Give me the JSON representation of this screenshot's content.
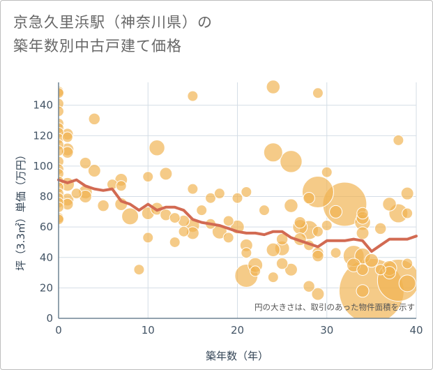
{
  "title_line1": "京急久里浜駅（神奈川県）の",
  "title_line2": "築年数別中古戸建て価格",
  "chart_data": {
    "type": "scatter",
    "xlabel": "築年数（年）",
    "ylabel": "坪（3.3㎡）単価（万円）",
    "xlim": [
      0,
      40
    ],
    "ylim": [
      0,
      155
    ],
    "xticks": [
      0,
      10,
      20,
      30,
      40
    ],
    "yticks": [
      0,
      20,
      40,
      60,
      80,
      100,
      120,
      140
    ],
    "grid": true,
    "annotation": "円の大きさは、取引のあった物件面積を示す",
    "colors": {
      "bubble": "#f0b24f",
      "line": "#d26a52",
      "grid": "#d4dde6",
      "axis": "#6f8394"
    },
    "points": [
      {
        "x": 0,
        "y": 149,
        "s": 1
      },
      {
        "x": 0,
        "y": 148,
        "s": 1
      },
      {
        "x": 0,
        "y": 141,
        "s": 1
      },
      {
        "x": 0,
        "y": 136,
        "s": 1
      },
      {
        "x": 0,
        "y": 128,
        "s": 1
      },
      {
        "x": 0,
        "y": 125,
        "s": 1
      },
      {
        "x": 0,
        "y": 122,
        "s": 1
      },
      {
        "x": 0,
        "y": 118,
        "s": 1
      },
      {
        "x": 0,
        "y": 114,
        "s": 1
      },
      {
        "x": 0,
        "y": 110,
        "s": 1
      },
      {
        "x": 0,
        "y": 103,
        "s": 1
      },
      {
        "x": 0,
        "y": 98,
        "s": 1
      },
      {
        "x": 0,
        "y": 95,
        "s": 1
      },
      {
        "x": 0,
        "y": 90,
        "s": 1
      },
      {
        "x": 0,
        "y": 86,
        "s": 1
      },
      {
        "x": 0,
        "y": 82,
        "s": 1
      },
      {
        "x": 0,
        "y": 79,
        "s": 1
      },
      {
        "x": 0,
        "y": 76,
        "s": 1
      },
      {
        "x": 0,
        "y": 73,
        "s": 1
      },
      {
        "x": 0,
        "y": 66,
        "s": 1
      },
      {
        "x": 0,
        "y": 65,
        "s": 1
      },
      {
        "x": 1,
        "y": 121,
        "s": 1.1
      },
      {
        "x": 1,
        "y": 119,
        "s": 1
      },
      {
        "x": 1,
        "y": 111,
        "s": 1.2
      },
      {
        "x": 1,
        "y": 109,
        "s": 1.1
      },
      {
        "x": 1,
        "y": 88,
        "s": 1.3
      },
      {
        "x": 1,
        "y": 78,
        "s": 1.2
      },
      {
        "x": 1,
        "y": 75,
        "s": 1.1
      },
      {
        "x": 2,
        "y": 82,
        "s": 1
      },
      {
        "x": 3,
        "y": 102,
        "s": 1.1
      },
      {
        "x": 3,
        "y": 83,
        "s": 1.3
      },
      {
        "x": 3,
        "y": 80,
        "s": 1.2
      },
      {
        "x": 4,
        "y": 131,
        "s": 1.1
      },
      {
        "x": 4,
        "y": 97,
        "s": 1.2
      },
      {
        "x": 5,
        "y": 74,
        "s": 1.1
      },
      {
        "x": 6,
        "y": 88,
        "s": 1
      },
      {
        "x": 7,
        "y": 91,
        "s": 1.2
      },
      {
        "x": 7,
        "y": 87,
        "s": 1
      },
      {
        "x": 7,
        "y": 75,
        "s": 1.2
      },
      {
        "x": 8,
        "y": 67,
        "s": 1.6
      },
      {
        "x": 9,
        "y": 32,
        "s": 1
      },
      {
        "x": 10,
        "y": 93,
        "s": 1
      },
      {
        "x": 10,
        "y": 69,
        "s": 1.2
      },
      {
        "x": 10,
        "y": 53,
        "s": 1
      },
      {
        "x": 11,
        "y": 112,
        "s": 1.5
      },
      {
        "x": 11,
        "y": 72,
        "s": 1.2
      },
      {
        "x": 12,
        "y": 95,
        "s": 1.2
      },
      {
        "x": 12,
        "y": 68,
        "s": 1.1
      },
      {
        "x": 13,
        "y": 66,
        "s": 1
      },
      {
        "x": 13,
        "y": 50,
        "s": 1
      },
      {
        "x": 14,
        "y": 64,
        "s": 1.1
      },
      {
        "x": 14,
        "y": 57,
        "s": 1
      },
      {
        "x": 15,
        "y": 146,
        "s": 1
      },
      {
        "x": 15,
        "y": 85,
        "s": 1
      },
      {
        "x": 15,
        "y": 61,
        "s": 1.3
      },
      {
        "x": 15,
        "y": 56,
        "s": 1.2
      },
      {
        "x": 16,
        "y": 71,
        "s": 1
      },
      {
        "x": 17,
        "y": 79,
        "s": 1
      },
      {
        "x": 17,
        "y": 62,
        "s": 1
      },
      {
        "x": 18,
        "y": 82,
        "s": 1
      },
      {
        "x": 18,
        "y": 57,
        "s": 1.4
      },
      {
        "x": 19,
        "y": 64,
        "s": 1
      },
      {
        "x": 19,
        "y": 53,
        "s": 1
      },
      {
        "x": 20,
        "y": 79,
        "s": 1
      },
      {
        "x": 20,
        "y": 60,
        "s": 1.3
      },
      {
        "x": 21,
        "y": 83,
        "s": 1
      },
      {
        "x": 21,
        "y": 48,
        "s": 1.2
      },
      {
        "x": 21,
        "y": 43,
        "s": 1
      },
      {
        "x": 21,
        "y": 28,
        "s": 2.2
      },
      {
        "x": 22,
        "y": 35,
        "s": 1.4
      },
      {
        "x": 22,
        "y": 31,
        "s": 1
      },
      {
        "x": 23,
        "y": 71,
        "s": 1
      },
      {
        "x": 24,
        "y": 152,
        "s": 1.3
      },
      {
        "x": 24,
        "y": 109,
        "s": 1.8
      },
      {
        "x": 24,
        "y": 45,
        "s": 1.3
      },
      {
        "x": 24,
        "y": 27,
        "s": 1
      },
      {
        "x": 25,
        "y": 52,
        "s": 1.1
      },
      {
        "x": 25,
        "y": 46,
        "s": 1.4
      },
      {
        "x": 25,
        "y": 36,
        "s": 1.1
      },
      {
        "x": 26,
        "y": 103,
        "s": 2.1
      },
      {
        "x": 26,
        "y": 74,
        "s": 1.3
      },
      {
        "x": 26,
        "y": 32,
        "s": 1.2
      },
      {
        "x": 27,
        "y": 63,
        "s": 1.1
      },
      {
        "x": 27,
        "y": 60,
        "s": 1.4
      },
      {
        "x": 27,
        "y": 52,
        "s": 1.2
      },
      {
        "x": 28,
        "y": 79,
        "s": 1.1
      },
      {
        "x": 28,
        "y": 58,
        "s": 1.8
      },
      {
        "x": 28,
        "y": 48,
        "s": 1
      },
      {
        "x": 28,
        "y": 21,
        "s": 1.1
      },
      {
        "x": 29,
        "y": 148,
        "s": 1
      },
      {
        "x": 29,
        "y": 83,
        "s": 3
      },
      {
        "x": 29,
        "y": 57,
        "s": 1
      },
      {
        "x": 29,
        "y": 43,
        "s": 1.1
      },
      {
        "x": 29,
        "y": 41,
        "s": 1.1
      },
      {
        "x": 29,
        "y": 16,
        "s": 1.2
      },
      {
        "x": 30,
        "y": 96,
        "s": 1
      },
      {
        "x": 30,
        "y": 61,
        "s": 1
      },
      {
        "x": 31,
        "y": 70,
        "s": 1.2
      },
      {
        "x": 31,
        "y": 43,
        "s": 1
      },
      {
        "x": 32,
        "y": 75,
        "s": 4.2
      },
      {
        "x": 33,
        "y": 41,
        "s": 2
      },
      {
        "x": 33,
        "y": 35,
        "s": 1.3
      },
      {
        "x": 34,
        "y": 69,
        "s": 1.1
      },
      {
        "x": 34,
        "y": 66,
        "s": 1.2
      },
      {
        "x": 34,
        "y": 63,
        "s": 1.5
      },
      {
        "x": 34,
        "y": 56,
        "s": 1.2
      },
      {
        "x": 34,
        "y": 41,
        "s": 1.5
      },
      {
        "x": 34,
        "y": 32,
        "s": 1.1
      },
      {
        "x": 34,
        "y": 18,
        "s": 1.2
      },
      {
        "x": 35,
        "y": 38,
        "s": 1.3
      },
      {
        "x": 35,
        "y": 18,
        "s": 6.2
      },
      {
        "x": 36,
        "y": 59,
        "s": 1.1
      },
      {
        "x": 36,
        "y": 32,
        "s": 1
      },
      {
        "x": 37,
        "y": 75,
        "s": 1.3
      },
      {
        "x": 37,
        "y": 33,
        "s": 1.4
      },
      {
        "x": 37,
        "y": 30,
        "s": 1.2
      },
      {
        "x": 38,
        "y": 117,
        "s": 1
      },
      {
        "x": 38,
        "y": 69,
        "s": 1.8
      },
      {
        "x": 38,
        "y": 25,
        "s": 4
      },
      {
        "x": 39,
        "y": 82,
        "s": 1.2
      },
      {
        "x": 39,
        "y": 69,
        "s": 1
      },
      {
        "x": 39,
        "y": 36,
        "s": 1
      },
      {
        "x": 39,
        "y": 23,
        "s": 1.6
      }
    ],
    "trend": {
      "x": [
        0,
        1,
        2,
        3,
        4,
        5,
        6,
        7,
        8,
        9,
        10,
        11,
        12,
        13,
        14,
        15,
        16,
        17,
        18,
        19,
        20,
        21,
        22,
        23,
        24,
        25,
        26,
        27,
        28,
        29,
        30,
        31,
        32,
        33,
        34,
        35,
        36,
        37,
        38,
        39,
        40
      ],
      "y": [
        91,
        89,
        91,
        87,
        85,
        84,
        85,
        77,
        75,
        71,
        75,
        71,
        73,
        73,
        71,
        65,
        63,
        62,
        61,
        59,
        57,
        56,
        56,
        55,
        57,
        57,
        53,
        51,
        49,
        47,
        51,
        51,
        51,
        52,
        51,
        44,
        48,
        52,
        52,
        52,
        54
      ]
    }
  }
}
